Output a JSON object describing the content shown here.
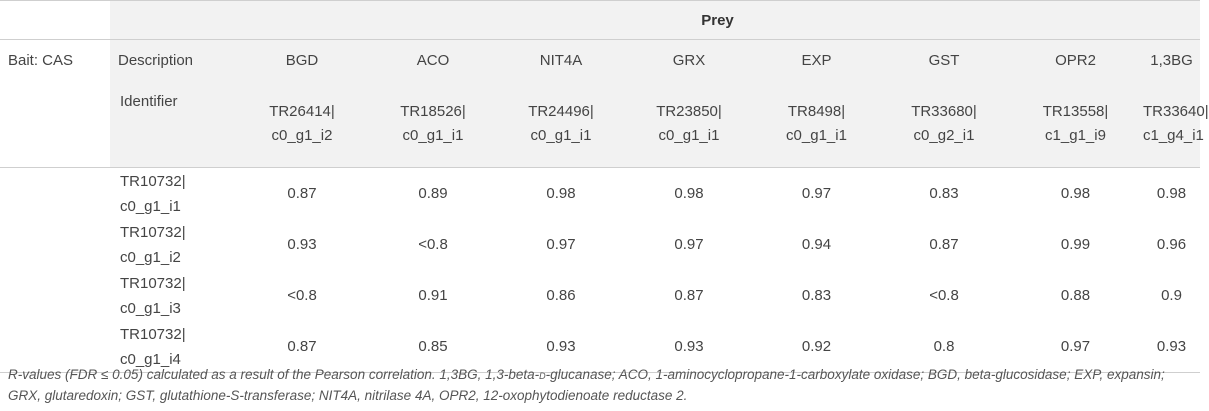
{
  "table": {
    "header_group": "Prey",
    "bait_label": "Bait: CAS",
    "description_label": "Description",
    "identifier_label": "Identifier",
    "prey": [
      {
        "description": "BGD",
        "id_line1": "TR26414|",
        "id_line2": "c0_g1_i2"
      },
      {
        "description": "ACO",
        "id_line1": "TR18526|",
        "id_line2": "c0_g1_i1"
      },
      {
        "description": "NIT4A",
        "id_line1": "TR24496|",
        "id_line2": "c0_g1_i1"
      },
      {
        "description": "GRX",
        "id_line1": "TR23850|",
        "id_line2": "c0_g1_i1"
      },
      {
        "description": "EXP",
        "id_line1": "TR8498|",
        "id_line2": "c0_g1_i1"
      },
      {
        "description": "GST",
        "id_line1": "TR33680|",
        "id_line2": "c0_g2_i1"
      },
      {
        "description": "OPR2",
        "id_line1": "TR13558|",
        "id_line2": "c1_g1_i9"
      },
      {
        "description": "1,3BG",
        "id_line1": "TR33640|",
        "id_line2": "c1_g4_i1"
      }
    ],
    "rows": [
      {
        "id_line1": "TR10732|",
        "id_line2": "c0_g1_i1",
        "values": [
          "0.87",
          "0.89",
          "0.98",
          "0.98",
          "0.97",
          "0.83",
          "0.98",
          "0.98"
        ]
      },
      {
        "id_line1": "TR10732|",
        "id_line2": "c0_g1_i2",
        "values": [
          "0.93",
          "<0.8",
          "0.97",
          "0.97",
          "0.94",
          "0.87",
          "0.99",
          "0.96"
        ]
      },
      {
        "id_line1": "TR10732|",
        "id_line2": "c0_g1_i3",
        "values": [
          "<0.8",
          "0.91",
          "0.86",
          "0.87",
          "0.83",
          "<0.8",
          "0.88",
          "0.9"
        ]
      },
      {
        "id_line1": "TR10732|",
        "id_line2": "c0_g1_i4",
        "values": [
          "0.87",
          "0.85",
          "0.93",
          "0.93",
          "0.92",
          "0.8",
          "0.97",
          "0.93"
        ]
      }
    ]
  },
  "footnote": {
    "part1": "R-values (FDR ≤ 0.05) calculated as a result of the Pearson correlation. 1,3BG, 1,3-beta-",
    "smallcaps": "d",
    "part2": "-glucanase; ACO, 1-aminocyclopropane-1-carboxylate oxidase; BGD, beta-glucosidase; EXP, expansin; GRX, glutaredoxin; GST, glutathione-S-transferase; NIT4A, nitrilase 4A, OPR2, 12-oxophytodienoate reductase 2."
  }
}
